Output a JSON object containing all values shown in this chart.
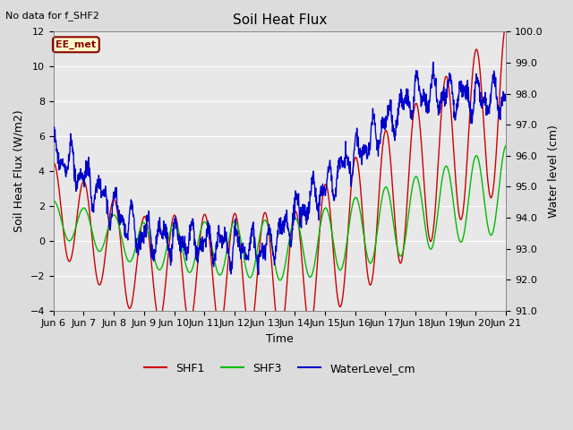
{
  "title": "Soil Heat Flux",
  "note": "No data for f_SHF2",
  "ylabel_left": "Soil Heat Flux (W/m2)",
  "ylabel_right": "Water level (cm)",
  "xlabel": "Time",
  "ylim_left": [
    -4,
    12
  ],
  "ylim_right": [
    91.0,
    100.0
  ],
  "yticks_left": [
    -4,
    -2,
    0,
    2,
    4,
    6,
    8,
    10,
    12
  ],
  "yticks_right": [
    91.0,
    92.0,
    93.0,
    94.0,
    95.0,
    96.0,
    97.0,
    98.0,
    99.0,
    100.0
  ],
  "xtick_labels": [
    "Jun 6",
    "Jun 7",
    "Jun 8",
    "Jun 9",
    "Jun 10",
    "Jun 11",
    "Jun 12",
    "Jun 13",
    "Jun 14",
    "Jun 15",
    "Jun 16",
    "Jun 17",
    "Jun 18",
    "Jun 19",
    "Jun 20",
    "Jun 21"
  ],
  "legend_labels": [
    "SHF1",
    "SHF3",
    "WaterLevel_cm"
  ],
  "colors": {
    "SHF1": "#cc0000",
    "SHF3": "#00bb00",
    "WaterLevel_cm": "#0000cc"
  },
  "station_label": "EE_met",
  "bg_color": "#dcdcdc",
  "plot_bg_color": "#e8e8e8",
  "grid_color": "white"
}
